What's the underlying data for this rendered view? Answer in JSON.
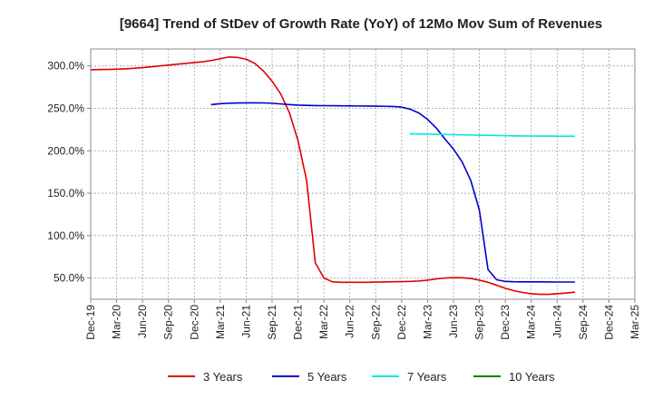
{
  "chart_data": {
    "type": "line",
    "title": "[9664]  Trend of StDev of Growth Rate (YoY) of 12Mo Mov Sum of Revenues",
    "xlabel": "",
    "ylabel": "",
    "y_range": [
      25,
      320
    ],
    "y_ticks": [
      50,
      100,
      150,
      200,
      250,
      300
    ],
    "y_tick_labels": [
      "50.0%",
      "100.0%",
      "150.0%",
      "200.0%",
      "250.0%",
      "300.0%"
    ],
    "x_tick_labels": [
      "Dec-19",
      "Mar-20",
      "Jun-20",
      "Sep-20",
      "Dec-20",
      "Mar-21",
      "Jun-21",
      "Sep-21",
      "Dec-21",
      "Mar-22",
      "Jun-22",
      "Sep-22",
      "Dec-22",
      "Mar-23",
      "Jun-23",
      "Sep-23",
      "Dec-23",
      "Mar-24",
      "Jun-24",
      "Sep-24",
      "Dec-24",
      "Mar-25"
    ],
    "x_index_range": [
      0,
      21
    ],
    "grid": true,
    "legend_position": "bottom",
    "series": [
      {
        "name": "3 Years",
        "color": "#e00000",
        "points": [
          [
            0,
            295.5
          ],
          [
            0.333,
            295.7
          ],
          [
            0.667,
            295.9
          ],
          [
            1,
            296.2
          ],
          [
            1.333,
            296.6
          ],
          [
            1.667,
            297.2
          ],
          [
            2,
            298
          ],
          [
            2.333,
            299
          ],
          [
            2.667,
            300
          ],
          [
            3,
            301
          ],
          [
            3.333,
            302
          ],
          [
            3.667,
            303
          ],
          [
            4,
            304
          ],
          [
            4.333,
            305
          ],
          [
            4.667,
            306.5
          ],
          [
            5,
            308.5
          ],
          [
            5.333,
            310.5
          ],
          [
            5.667,
            310
          ],
          [
            6,
            308
          ],
          [
            6.333,
            303
          ],
          [
            6.667,
            294
          ],
          [
            7,
            282
          ],
          [
            7.333,
            267
          ],
          [
            7.667,
            245
          ],
          [
            8,
            212
          ],
          [
            8.333,
            165
          ],
          [
            8.667,
            68
          ],
          [
            9,
            50
          ],
          [
            9.333,
            45.5
          ],
          [
            9.667,
            45
          ],
          [
            10,
            45
          ],
          [
            10.333,
            45
          ],
          [
            10.667,
            45
          ],
          [
            11,
            45.2
          ],
          [
            11.333,
            45.4
          ],
          [
            11.667,
            45.6
          ],
          [
            12,
            45.8
          ],
          [
            12.333,
            46
          ],
          [
            12.667,
            46.5
          ],
          [
            13,
            47.5
          ],
          [
            13.333,
            49
          ],
          [
            13.667,
            50
          ],
          [
            14,
            50.5
          ],
          [
            14.333,
            50.3
          ],
          [
            14.667,
            49.5
          ],
          [
            15,
            47.5
          ],
          [
            15.333,
            45
          ],
          [
            15.667,
            41.5
          ],
          [
            16,
            38
          ],
          [
            16.333,
            35
          ],
          [
            16.667,
            33
          ],
          [
            17,
            31.5
          ],
          [
            17.333,
            30.8
          ],
          [
            17.667,
            30.8
          ],
          [
            18,
            31.5
          ],
          [
            18.333,
            32.3
          ],
          [
            18.667,
            33.3
          ]
        ]
      },
      {
        "name": "5 Years",
        "color": "#0000cc",
        "points": [
          [
            4.667,
            254.5
          ],
          [
            5,
            255.5
          ],
          [
            5.333,
            256
          ],
          [
            5.667,
            256.3
          ],
          [
            6,
            256.5
          ],
          [
            6.333,
            256.5
          ],
          [
            6.667,
            256.4
          ],
          [
            7,
            256
          ],
          [
            7.333,
            255.2
          ],
          [
            7.667,
            254.5
          ],
          [
            8,
            253.8
          ],
          [
            8.333,
            253.5
          ],
          [
            8.667,
            253.3
          ],
          [
            9,
            253.2
          ],
          [
            9.333,
            253.1
          ],
          [
            9.667,
            253
          ],
          [
            10,
            252.9
          ],
          [
            10.333,
            252.8
          ],
          [
            10.667,
            252.7
          ],
          [
            11,
            252.6
          ],
          [
            11.333,
            252.4
          ],
          [
            11.667,
            252.2
          ],
          [
            12,
            251.5
          ],
          [
            12.333,
            249
          ],
          [
            12.667,
            244.5
          ],
          [
            13,
            237
          ],
          [
            13.333,
            227
          ],
          [
            13.667,
            214
          ],
          [
            14,
            202
          ],
          [
            14.333,
            187
          ],
          [
            14.667,
            165
          ],
          [
            15,
            130
          ],
          [
            15.333,
            60
          ],
          [
            15.667,
            48
          ],
          [
            16,
            46
          ],
          [
            16.333,
            45.6
          ],
          [
            16.667,
            45.5
          ],
          [
            17,
            45.5
          ],
          [
            17.333,
            45.5
          ],
          [
            17.667,
            45.4
          ],
          [
            18,
            45.3
          ],
          [
            18.333,
            45.3
          ],
          [
            18.667,
            45.3
          ]
        ]
      },
      {
        "name": "7 Years",
        "color": "#00e5e5",
        "points": [
          [
            12.333,
            220
          ],
          [
            12.667,
            219.8
          ],
          [
            13,
            219.6
          ],
          [
            13.333,
            219.4
          ],
          [
            13.667,
            219.2
          ],
          [
            14,
            219
          ],
          [
            14.333,
            218.8
          ],
          [
            14.667,
            218.6
          ],
          [
            15,
            218.4
          ],
          [
            15.333,
            218.2
          ],
          [
            15.667,
            218
          ],
          [
            16,
            217.8
          ],
          [
            16.333,
            217.6
          ],
          [
            16.667,
            217.5
          ],
          [
            17,
            217.4
          ],
          [
            17.333,
            217.3
          ],
          [
            17.667,
            217.3
          ],
          [
            18,
            217.2
          ],
          [
            18.333,
            217.2
          ],
          [
            18.667,
            217.2
          ]
        ]
      },
      {
        "name": "10 Years",
        "color": "#008000",
        "points": []
      }
    ]
  }
}
